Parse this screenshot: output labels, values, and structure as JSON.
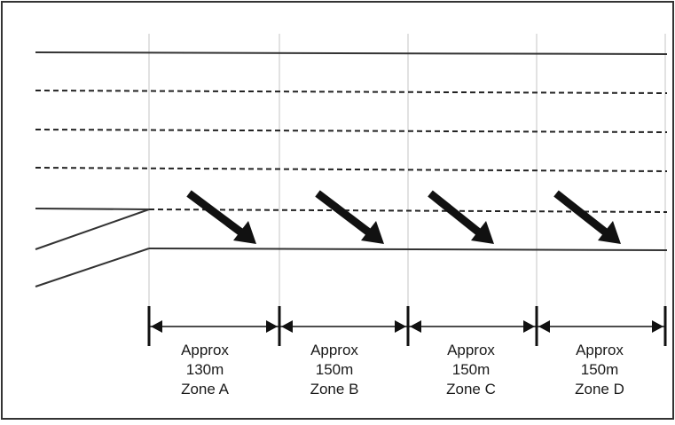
{
  "diagram": {
    "zones": [
      {
        "approx": "Approx",
        "length": "130m",
        "name": "Zone A"
      },
      {
        "approx": "Approx",
        "length": "150m",
        "name": "Zone B"
      },
      {
        "approx": "Approx",
        "length": "150m",
        "name": "Zone C"
      },
      {
        "approx": "Approx",
        "length": "150m",
        "name": "Zone D"
      }
    ],
    "colors": {
      "line": "#333333",
      "dashed": "#222222",
      "guide": "#d8d8d8",
      "arrow": "#111111"
    }
  }
}
